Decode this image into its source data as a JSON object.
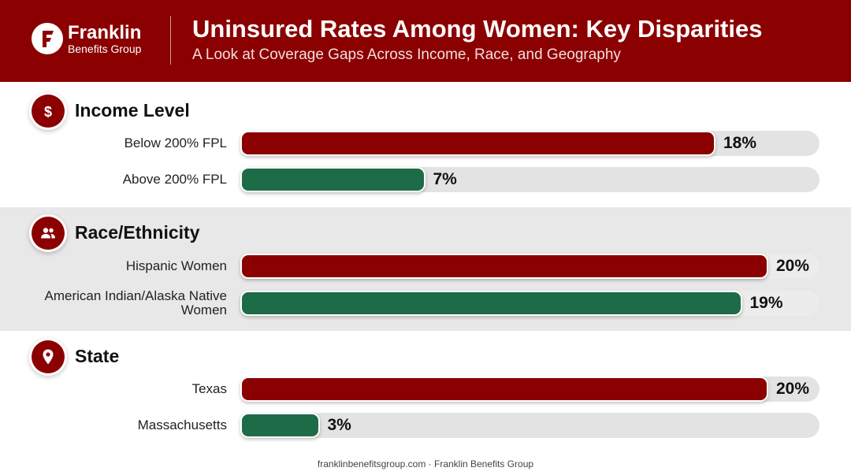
{
  "header": {
    "logo_name": "Franklin",
    "logo_sub": "Benefits Group",
    "title": "Uninsured Rates Among Women: Key Disparities",
    "subtitle": "A Look at Coverage Gaps Across Income, Race, and Geography"
  },
  "colors": {
    "brand": "#8b0000",
    "high": "#8b0000",
    "low": "#1e6b48",
    "track": "#e3e3e3"
  },
  "chart_data": {
    "type": "bar",
    "orientation": "horizontal",
    "unit": "%",
    "xlim": [
      0,
      21
    ],
    "groups": [
      {
        "name": "Income Level",
        "icon": "dollar-icon",
        "categories": [
          "Below 200% FPL",
          "Above 200% FPL"
        ],
        "values": [
          18,
          7
        ],
        "labels": [
          "18%",
          "7%"
        ]
      },
      {
        "name": "Race/Ethnicity",
        "icon": "people-icon",
        "categories": [
          "Hispanic Women",
          "American Indian/Alaska Native Women"
        ],
        "values": [
          20,
          19
        ],
        "labels": [
          "20%",
          "19%"
        ]
      },
      {
        "name": "State",
        "icon": "map-pin-icon",
        "categories": [
          "Texas",
          "Massachusetts"
        ],
        "values": [
          20,
          3
        ],
        "labels": [
          "20%",
          "3%"
        ]
      }
    ]
  },
  "footer": {
    "text": "franklinbenefitsgroup.com · Franklin Benefits Group"
  }
}
